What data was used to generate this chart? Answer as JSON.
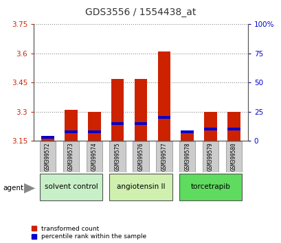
{
  "title": "GDS3556 / 1554438_at",
  "samples": [
    "GSM399572",
    "GSM399573",
    "GSM399574",
    "GSM399575",
    "GSM399576",
    "GSM399577",
    "GSM399578",
    "GSM399579",
    "GSM399580"
  ],
  "transformed_count": [
    3.17,
    3.31,
    3.3,
    3.47,
    3.47,
    3.61,
    3.2,
    3.3,
    3.3
  ],
  "percentile_rank": [
    3,
    8,
    8,
    15,
    15,
    20,
    8,
    10,
    10
  ],
  "ymin": 3.15,
  "ymax": 3.75,
  "yticks": [
    3.15,
    3.3,
    3.45,
    3.6,
    3.75
  ],
  "ytick_labels": [
    "3.15",
    "3.3",
    "3.45",
    "3.6",
    "3.75"
  ],
  "right_yticks": [
    0,
    25,
    50,
    75,
    100
  ],
  "right_ytick_labels": [
    "0",
    "25",
    "50",
    "75",
    "100%"
  ],
  "groups": [
    {
      "label": "solvent control",
      "samples": [
        0,
        1,
        2
      ],
      "color": "#c8f0c8"
    },
    {
      "label": "angiotensin II",
      "samples": [
        3,
        4,
        5
      ],
      "color": "#d0f0b0"
    },
    {
      "label": "torcetrapib",
      "samples": [
        6,
        7,
        8
      ],
      "color": "#5fdb5f"
    }
  ],
  "agent_label": "agent",
  "bar_color_red": "#cc2200",
  "bar_color_blue": "#0000cc",
  "bar_width": 0.55,
  "legend_red": "transformed count",
  "legend_blue": "percentile rank within the sample",
  "title_color": "#333333",
  "left_tick_color": "#cc2200",
  "right_tick_color": "#0000cc",
  "grid_color": "#888888",
  "sample_bg_color": "#cccccc",
  "group_border_color": "#555555"
}
